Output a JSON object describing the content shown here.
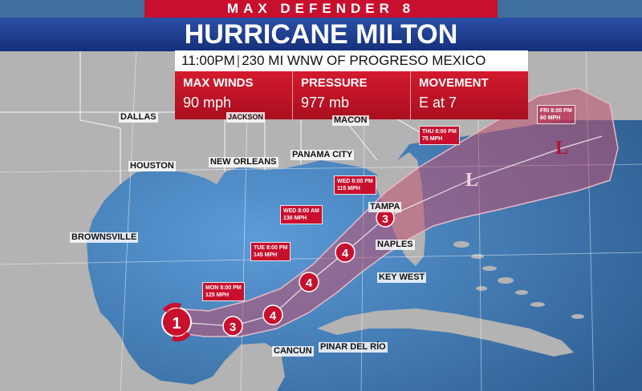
{
  "header": {
    "brand": "MAX DEFENDER 8",
    "title": "HURRICANE MILTON"
  },
  "info": {
    "time": "11:00PM",
    "location": "230 MI WNW OF PROGRESO MEXICO",
    "max_winds_label": "MAX WINDS",
    "max_winds_value": "90 mph",
    "pressure_label": "PRESSURE",
    "pressure_value": "977 mb",
    "movement_label": "MOVEMENT",
    "movement_value": "E at 7"
  },
  "cities": {
    "dallas": "DALLAS",
    "houston": "HOUSTON",
    "brownsville": "BROWNSVILLE",
    "new_orleans": "NEW ORLEANS",
    "panama_city": "PANAMA CITY",
    "macon": "MACON",
    "jackson": "JACKSON",
    "tampa": "TAMPA",
    "naples": "NAPLES",
    "key_west": "KEY WEST",
    "pinar_del_rio": "PINAR DEL RÍO",
    "cancun": "CANCUN"
  },
  "forecast_points": [
    {
      "day": "MON 8:00 PM",
      "wind": "125 MPH",
      "category": "3"
    },
    {
      "day": "TUE 8:00 PM",
      "wind": "145 MPH",
      "category": "4"
    },
    {
      "day": "WED 8:00 AM",
      "wind": "130 MPH",
      "category": "4"
    },
    {
      "day": "WED 8:00 PM",
      "wind": "115 MPH",
      "category": "3"
    },
    {
      "day": "THU 8:00 PM",
      "wind": "75 MPH",
      "category": "L"
    },
    {
      "day": "FRI 8:00 PM",
      "wind": "60 MPH",
      "category": "L"
    }
  ],
  "current_category": "1",
  "colors": {
    "brand_red": "#c8102e",
    "title_blue": "#1f3f95",
    "land": "#b3b3b3",
    "water": "#4a84bd",
    "cone": "#c0506e"
  }
}
